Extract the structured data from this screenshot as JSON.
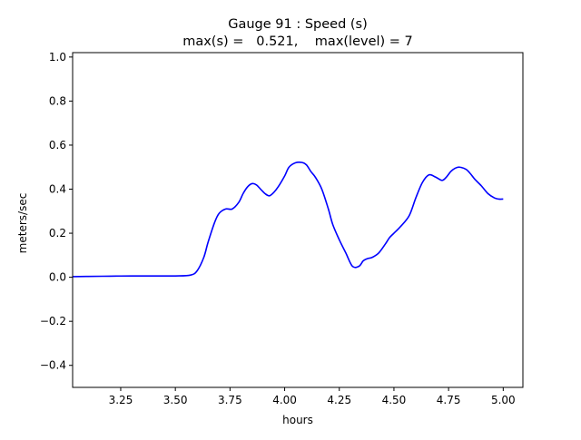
{
  "chart_data": {
    "type": "line",
    "title": "Gauge 91 : Speed (s)",
    "subtitle": "max(s) =   0.521,    max(level) = 7",
    "xlabel": "hours",
    "ylabel": "meters/sec",
    "xlim": [
      3.03,
      5.09
    ],
    "ylim": [
      -0.5,
      1.02
    ],
    "grid": false,
    "xticks": [
      3.25,
      3.5,
      3.75,
      4.0,
      4.25,
      4.5,
      4.75,
      5.0
    ],
    "xtick_labels": [
      "3.25",
      "3.50",
      "3.75",
      "4.00",
      "4.25",
      "4.50",
      "4.75",
      "5.00"
    ],
    "yticks": [
      -0.4,
      -0.2,
      0.0,
      0.2,
      0.4,
      0.6,
      0.8,
      1.0
    ],
    "ytick_labels": [
      "−0.4",
      "−0.2",
      "0.0",
      "0.2",
      "0.4",
      "0.6",
      "0.8",
      "1.0"
    ],
    "series": [
      {
        "color": "#0000ff",
        "x": [
          3.03,
          3.1,
          3.2,
          3.3,
          3.4,
          3.5,
          3.57,
          3.6,
          3.63,
          3.65,
          3.68,
          3.7,
          3.73,
          3.76,
          3.79,
          3.81,
          3.83,
          3.85,
          3.87,
          3.89,
          3.91,
          3.93,
          3.95,
          3.97,
          4.0,
          4.02,
          4.05,
          4.08,
          4.1,
          4.12,
          4.14,
          4.17,
          4.2,
          4.22,
          4.25,
          4.28,
          4.31,
          4.34,
          4.36,
          4.38,
          4.4,
          4.43,
          4.46,
          4.48,
          4.5,
          4.53,
          4.57,
          4.6,
          4.63,
          4.66,
          4.69,
          4.72,
          4.74,
          4.76,
          4.78,
          4.8,
          4.83,
          4.85,
          4.87,
          4.9,
          4.93,
          4.96,
          4.98,
          5.0
        ],
        "y": [
          0.003,
          0.004,
          0.005,
          0.006,
          0.006,
          0.006,
          0.01,
          0.03,
          0.09,
          0.16,
          0.25,
          0.29,
          0.31,
          0.31,
          0.34,
          0.38,
          0.41,
          0.425,
          0.42,
          0.4,
          0.38,
          0.37,
          0.385,
          0.41,
          0.46,
          0.5,
          0.52,
          0.521,
          0.51,
          0.48,
          0.455,
          0.4,
          0.31,
          0.24,
          0.17,
          0.11,
          0.05,
          0.05,
          0.075,
          0.085,
          0.09,
          0.11,
          0.15,
          0.18,
          0.2,
          0.23,
          0.28,
          0.36,
          0.43,
          0.465,
          0.455,
          0.44,
          0.455,
          0.48,
          0.495,
          0.5,
          0.49,
          0.47,
          0.445,
          0.415,
          0.38,
          0.36,
          0.355,
          0.355
        ]
      }
    ]
  }
}
